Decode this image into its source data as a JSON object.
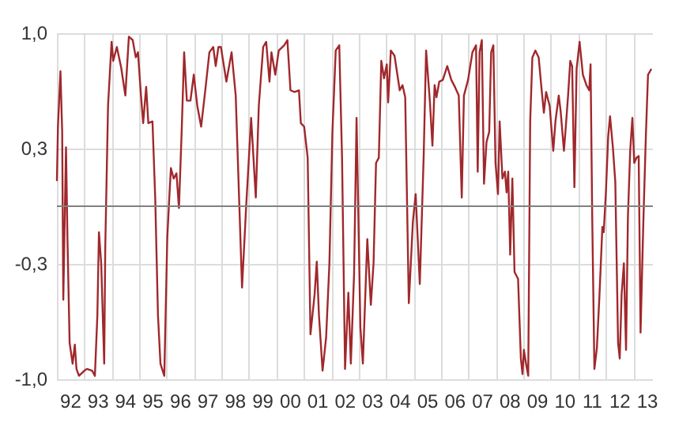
{
  "chart_data": {
    "type": "line",
    "color": "#a0282c",
    "line_style": "solid",
    "marker": "none",
    "grid": true,
    "xlim": [
      "1992-01-01",
      "2013-09-13"
    ],
    "ylim": [
      -1,
      1
    ],
    "xticks": [
      {
        "value": "1992",
        "label": null
      },
      {
        "value": "1993",
        "label": null
      },
      {
        "value": "1994",
        "label": null
      },
      {
        "value": "1995",
        "label": null
      },
      {
        "value": "1996",
        "label": null
      },
      {
        "value": "1997",
        "label": null
      },
      {
        "value": "1998",
        "label": null
      },
      {
        "value": "1999",
        "label": null
      },
      {
        "value": "2000",
        "label": null
      },
      {
        "value": "2001",
        "label": null
      },
      {
        "value": "2002",
        "label": null
      },
      {
        "value": "2003",
        "label": null
      },
      {
        "value": "2004",
        "label": null
      },
      {
        "value": "2005",
        "label": null
      },
      {
        "value": "2006",
        "label": null
      },
      {
        "value": "2007",
        "label": null
      },
      {
        "value": "2008",
        "label": null
      },
      {
        "value": "2009",
        "label": null
      },
      {
        "value": "2010",
        "label": null
      },
      {
        "value": "2011",
        "label": null
      },
      {
        "value": "2012",
        "label": null
      },
      {
        "value": "2013",
        "label": null
      },
      {
        "value": "1992-07-02",
        "label": "92"
      },
      {
        "value": "1993-07-02",
        "label": "93"
      },
      {
        "value": "1994-07-02",
        "label": "94"
      },
      {
        "value": "1995-07-02",
        "label": "95"
      },
      {
        "value": "1996-07-02",
        "label": "96"
      },
      {
        "value": "1997-07-02",
        "label": "97"
      },
      {
        "value": "1998-07-02",
        "label": "98"
      },
      {
        "value": "1999-07-02",
        "label": "99"
      },
      {
        "value": "2000-07-02",
        "label": "00"
      },
      {
        "value": "2001-07-02",
        "label": "01"
      },
      {
        "value": "2002-07-02",
        "label": "02"
      },
      {
        "value": "2003-07-02",
        "label": "03"
      },
      {
        "value": "2004-07-02",
        "label": "04"
      },
      {
        "value": "2005-07-02",
        "label": "05"
      },
      {
        "value": "2006-07-02",
        "label": "06"
      },
      {
        "value": "2007-07-02",
        "label": "07"
      },
      {
        "value": "2008-07-02",
        "label": "08"
      },
      {
        "value": "2009-07-02",
        "label": "09"
      },
      {
        "value": "2010-07-02",
        "label": "10"
      },
      {
        "value": "2011-07-02",
        "label": "11"
      },
      {
        "value": "2012-07-02",
        "label": "12"
      },
      {
        "value": "2013-07-02",
        "label": "13"
      }
    ],
    "yticks": [
      {
        "value": -1,
        "label": "-1,0"
      },
      {
        "value": -0.333,
        "label": "-0,3"
      },
      {
        "value": 0.333,
        "label": "0,3"
      },
      {
        "value": 1,
        "label": "1,0"
      }
    ],
    "ref_lines": [
      {
        "axis": "y",
        "value": 0,
        "color": "#808080"
      }
    ],
    "x": [
      "1992-01-01",
      "1992-01-15",
      "1992-02-17",
      "1992-03-11",
      "1992-03-26",
      "1992-05-01",
      "1992-05-20",
      "1992-06-18",
      "1992-07-28",
      "1992-08-26",
      "1992-09-17",
      "1992-10-20",
      "1993-01-01",
      "1993-02-03",
      "1993-04-13",
      "1993-05-20",
      "1993-06-22",
      "1993-07-13",
      "1993-08-12",
      "1993-09-21",
      "1993-10-05",
      "1993-11-11",
      "1993-12-28",
      "1994-01-19",
      "1994-03-08",
      "1994-05-05",
      "1994-06-29",
      "1994-08-15",
      "1994-10-05",
      "1994-11-15",
      "1994-12-14",
      "1995-01-23",
      "1995-02-21",
      "1995-04-02",
      "1995-05-01",
      "1995-06-25",
      "1995-08-01",
      "1995-09-06",
      "1995-10-09",
      "1995-11-29",
      "1996-01-08",
      "1996-02-06",
      "1996-02-25",
      "1996-04-02",
      "1996-05-09",
      "1996-06-11",
      "1996-07-17",
      "1996-08-19",
      "1996-09-24",
      "1996-11-11",
      "1996-12-25",
      "1997-02-10",
      "1997-04-02",
      "1997-05-27",
      "1997-07-21",
      "1997-09-10",
      "1997-10-13",
      "1997-11-18",
      "1997-12-21",
      "1998-03-04",
      "1998-05-12",
      "1998-07-06",
      "1998-09-28",
      "1998-11-22",
      "1999-01-27",
      "1999-03-30",
      "1999-05-09",
      "1999-07-06",
      "1999-08-15",
      "1999-09-28",
      "1999-10-24",
      "1999-12-14",
      "2000-01-30",
      "2000-04-10",
      "2000-05-23",
      "2000-07-03",
      "2000-08-26",
      "2000-10-24",
      "2000-11-18",
      "2001-01-01",
      "2001-02-17",
      "2001-03-26",
      "2001-05-20",
      "2001-06-18",
      "2001-07-17",
      "2001-09-03",
      "2001-10-20",
      "2001-12-03",
      "2002-01-12",
      "2002-02-25",
      "2002-04-13",
      "2002-05-20",
      "2002-06-29",
      "2002-08-12",
      "2002-09-14",
      "2002-10-27",
      "2002-11-29",
      "2002-12-28",
      "2003-01-19",
      "2003-02-21",
      "2003-04-21",
      "2003-06-07",
      "2003-07-13",
      "2003-08-15",
      "2003-09-21",
      "2003-10-24",
      "2003-11-29",
      "2004-01-05",
      "2004-01-23",
      "2004-02-28",
      "2004-04-17",
      "2004-06-25",
      "2004-08-01",
      "2004-09-06",
      "2004-10-24",
      "2004-12-17",
      "2005-01-23",
      "2005-03-19",
      "2005-05-09",
      "2005-06-11",
      "2005-08-01",
      "2005-09-03",
      "2005-10-02",
      "2005-10-27",
      "2005-12-03",
      "2006-01-19",
      "2006-03-19",
      "2006-05-12",
      "2006-06-29",
      "2006-08-19",
      "2006-09-28",
      "2006-10-27",
      "2006-12-21",
      "2007-02-17",
      "2007-04-06",
      "2007-04-28",
      "2007-05-23",
      "2007-06-22",
      "2007-07-21",
      "2007-08-23",
      "2007-09-28",
      "2007-10-24",
      "2007-11-22",
      "2007-12-21",
      "2008-01-23",
      "2008-02-14",
      "2008-03-22",
      "2008-04-24",
      "2008-05-16",
      "2008-06-07",
      "2008-07-03",
      "2008-08-01",
      "2008-08-30",
      "2008-10-16",
      "2008-11-22",
      "2008-12-14",
      "2009-01-01",
      "2009-01-30",
      "2009-02-28",
      "2009-03-26",
      "2009-04-24",
      "2009-06-03",
      "2009-07-17",
      "2009-08-26",
      "2009-09-24",
      "2009-10-24",
      "2009-12-10",
      "2010-01-27",
      "2010-02-25",
      "2010-04-10",
      "2010-05-05",
      "2010-06-18",
      "2010-07-13",
      "2010-08-12",
      "2010-09-10",
      "2010-10-05",
      "2010-11-04",
      "2010-12-03",
      "2011-01-12",
      "2011-02-25",
      "2011-04-13",
      "2011-05-20",
      "2011-06-07",
      "2011-06-29",
      "2011-07-28",
      "2011-08-30",
      "2011-10-05",
      "2011-11-11",
      "2011-11-29",
      "2011-12-28",
      "2012-01-27",
      "2012-02-21",
      "2012-03-30",
      "2012-05-01",
      "2012-06-07",
      "2012-06-29",
      "2012-07-24",
      "2012-08-23",
      "2012-09-21",
      "2012-10-16",
      "2012-11-15",
      "2012-12-14",
      "2013-01-08",
      "2013-02-06",
      "2013-03-08",
      "2013-04-02",
      "2013-05-09",
      "2013-06-11",
      "2013-07-10",
      "2013-08-19"
    ],
    "values": [
      0.15,
      0.46,
      0.78,
      0.43,
      -0.54,
      0.34,
      -0.18,
      -0.79,
      -0.91,
      -0.8,
      -0.94,
      -0.98,
      -0.95,
      -0.94,
      -0.95,
      -0.98,
      -0.63,
      -0.15,
      -0.33,
      -0.91,
      -0.24,
      0.58,
      0.95,
      0.84,
      0.92,
      0.8,
      0.64,
      0.98,
      0.96,
      0.86,
      0.89,
      0.64,
      0.48,
      0.69,
      0.48,
      0.49,
      0.04,
      -0.63,
      -0.91,
      -0.98,
      -0.18,
      0.07,
      0.22,
      0.16,
      0.19,
      -0.01,
      0.43,
      0.89,
      0.61,
      0.61,
      0.76,
      0.58,
      0.46,
      0.67,
      0.89,
      0.92,
      0.81,
      0.92,
      0.92,
      0.72,
      0.89,
      0.64,
      -0.47,
      0.0,
      0.51,
      0.05,
      0.58,
      0.92,
      0.95,
      0.72,
      0.89,
      0.76,
      0.9,
      0.93,
      0.96,
      0.67,
      0.66,
      0.67,
      0.48,
      0.46,
      0.28,
      -0.74,
      -0.51,
      -0.32,
      -0.63,
      -0.95,
      -0.76,
      -0.33,
      0.43,
      0.9,
      0.93,
      0.28,
      -0.94,
      -0.5,
      -0.91,
      -0.39,
      0.51,
      -0.18,
      -0.7,
      -0.91,
      -0.19,
      -0.57,
      -0.33,
      0.25,
      0.28,
      0.84,
      0.74,
      0.82,
      0.6,
      0.9,
      0.87,
      0.67,
      0.7,
      0.63,
      -0.56,
      -0.09,
      0.07,
      -0.45,
      0.28,
      0.9,
      0.6,
      0.35,
      0.7,
      0.63,
      0.72,
      0.73,
      0.81,
      0.73,
      0.69,
      0.64,
      0.05,
      0.64,
      0.73,
      0.89,
      0.93,
      0.2,
      0.89,
      0.96,
      0.13,
      0.37,
      0.43,
      0.89,
      0.93,
      0.25,
      0.07,
      0.49,
      0.16,
      0.2,
      0.08,
      0.2,
      -0.28,
      0.16,
      -0.38,
      -0.42,
      -0.88,
      -0.97,
      -0.83,
      -0.91,
      -0.98,
      0.49,
      0.86,
      0.9,
      0.86,
      0.67,
      0.54,
      0.66,
      0.58,
      0.32,
      0.49,
      0.64,
      0.55,
      0.32,
      0.46,
      0.64,
      0.84,
      0.81,
      0.11,
      0.79,
      0.95,
      0.76,
      0.7,
      0.67,
      0.82,
      -0.06,
      -0.94,
      -0.82,
      -0.5,
      -0.12,
      -0.15,
      0.08,
      0.4,
      0.52,
      0.34,
      0.14,
      -0.79,
      -0.88,
      -0.51,
      -0.33,
      -0.83,
      -0.06,
      0.32,
      0.51,
      0.25,
      0.28,
      0.29,
      -0.73,
      -0.09,
      0.4,
      0.76,
      0.79
    ]
  }
}
